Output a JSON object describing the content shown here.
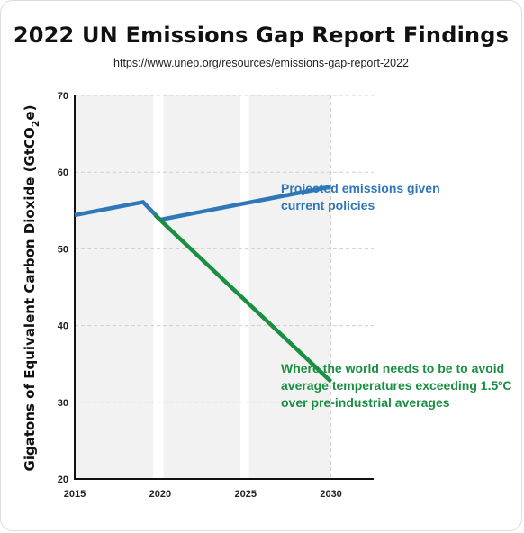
{
  "title": "2022 UN Emissions Gap Report Findings",
  "subtitle": "https://www.unep.org/resources/emissions-gap-report-2022",
  "chart_data": {
    "type": "line",
    "ylabel": "Gigatons of Equivalent Carbon Dioxide (GtCO",
    "ylabel_sub": "2",
    "ylabel_end": "e)",
    "xlim": [
      2015,
      2032.5
    ],
    "ylim": [
      20,
      70
    ],
    "x_ticks": [
      2015,
      2020,
      2025,
      2030
    ],
    "x_tick_labels": [
      "2015",
      "2020",
      "2025",
      "2030"
    ],
    "y_ticks": [
      20,
      30,
      40,
      50,
      60,
      70
    ],
    "y_tick_labels": [
      "20",
      "30",
      "40",
      "50",
      "60",
      "70"
    ],
    "grid": true,
    "shaded_bands": [
      [
        2015,
        2019.6
      ],
      [
        2020.2,
        2024.7
      ],
      [
        2025.2,
        2030
      ]
    ],
    "series": [
      {
        "key": "projected",
        "color": "#2f77b9",
        "segments": [
          [
            [
              2015,
              54.4
            ],
            [
              2019,
              56.1
            ],
            [
              2020,
              53.8
            ]
          ],
          [
            [
              2020,
              53.8
            ],
            [
              2030,
              58.1
            ]
          ]
        ],
        "annotation": [
          "Projected emissions given",
          "current policies"
        ]
      },
      {
        "key": "target",
        "color": "#1a8f42",
        "segments": [
          [
            [
              2019.7,
              54.4
            ],
            [
              2030,
              32.7
            ]
          ]
        ],
        "annotation": [
          "Where the world needs to be to avoid",
          "average temperatures exceeding 1.5ºC",
          "over pre-industrial averages"
        ]
      }
    ]
  }
}
